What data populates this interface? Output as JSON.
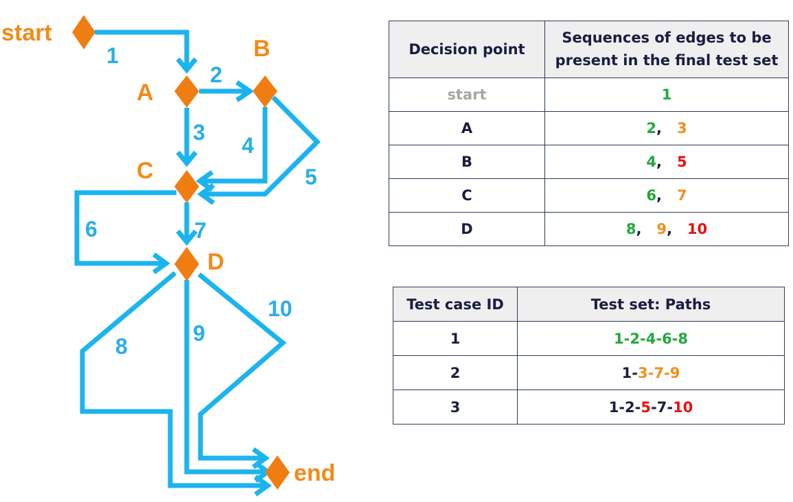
{
  "diagram": {
    "nodes": {
      "start": "start",
      "A": "A",
      "B": "B",
      "C": "C",
      "D": "D",
      "end": "end"
    },
    "edges": [
      {
        "label": "1",
        "from": "start",
        "to": "A"
      },
      {
        "label": "2",
        "from": "A",
        "to": "B"
      },
      {
        "label": "3",
        "from": "A",
        "to": "C"
      },
      {
        "label": "4",
        "from": "B",
        "to": "C"
      },
      {
        "label": "5",
        "from": "B",
        "to": "C"
      },
      {
        "label": "6",
        "from": "C",
        "to": "D"
      },
      {
        "label": "7",
        "from": "C",
        "to": "D"
      },
      {
        "label": "8",
        "from": "D",
        "to": "end"
      },
      {
        "label": "9",
        "from": "D",
        "to": "end"
      },
      {
        "label": "10",
        "from": "D",
        "to": "end"
      }
    ],
    "colors": {
      "edge": "#1cb4ee",
      "node": "#f07d12",
      "node_label": "#f28a1a",
      "edge_label": "#29aee8"
    }
  },
  "decision_table": {
    "headers": [
      "Decision point",
      "Sequences of edges to be present in the final test set"
    ],
    "header_lines": [
      "Sequences of edges to be",
      "present in the final test set"
    ],
    "rows": [
      {
        "point": "start",
        "edges": [
          {
            "t": "1",
            "c": "green"
          }
        ]
      },
      {
        "point": "A",
        "edges": [
          {
            "t": "2",
            "c": "green"
          },
          {
            "t": "3",
            "c": "orange"
          }
        ]
      },
      {
        "point": "B",
        "edges": [
          {
            "t": "4",
            "c": "green"
          },
          {
            "t": "5",
            "c": "red"
          }
        ]
      },
      {
        "point": "C",
        "edges": [
          {
            "t": "6",
            "c": "green"
          },
          {
            "t": "7",
            "c": "orange"
          }
        ]
      },
      {
        "point": "D",
        "edges": [
          {
            "t": "8",
            "c": "green"
          },
          {
            "t": "9",
            "c": "orange"
          },
          {
            "t": "10",
            "c": "red"
          }
        ]
      }
    ]
  },
  "test_table": {
    "headers": [
      "Test case ID",
      "Test set: Paths"
    ],
    "rows": [
      {
        "id": "1",
        "path": [
          {
            "t": "1",
            "c": "green"
          },
          {
            "t": "-",
            "c": "green"
          },
          {
            "t": "2",
            "c": "green"
          },
          {
            "t": "-",
            "c": "green"
          },
          {
            "t": "4",
            "c": "green"
          },
          {
            "t": "-",
            "c": "green"
          },
          {
            "t": "6",
            "c": "green"
          },
          {
            "t": "-",
            "c": "green"
          },
          {
            "t": "8",
            "c": "green"
          }
        ]
      },
      {
        "id": "2",
        "path": [
          {
            "t": "1",
            "c": "dark"
          },
          {
            "t": "-",
            "c": "dark"
          },
          {
            "t": "3",
            "c": "orange"
          },
          {
            "t": "-",
            "c": "orange"
          },
          {
            "t": "7",
            "c": "orange"
          },
          {
            "t": "-",
            "c": "orange"
          },
          {
            "t": "9",
            "c": "orange"
          }
        ]
      },
      {
        "id": "3",
        "path": [
          {
            "t": "1",
            "c": "dark"
          },
          {
            "t": "-",
            "c": "dark"
          },
          {
            "t": "2",
            "c": "dark"
          },
          {
            "t": "-",
            "c": "dark"
          },
          {
            "t": "5",
            "c": "red"
          },
          {
            "t": "-",
            "c": "dark"
          },
          {
            "t": "7",
            "c": "dark"
          },
          {
            "t": "-",
            "c": "dark"
          },
          {
            "t": "10",
            "c": "red"
          }
        ]
      }
    ]
  }
}
